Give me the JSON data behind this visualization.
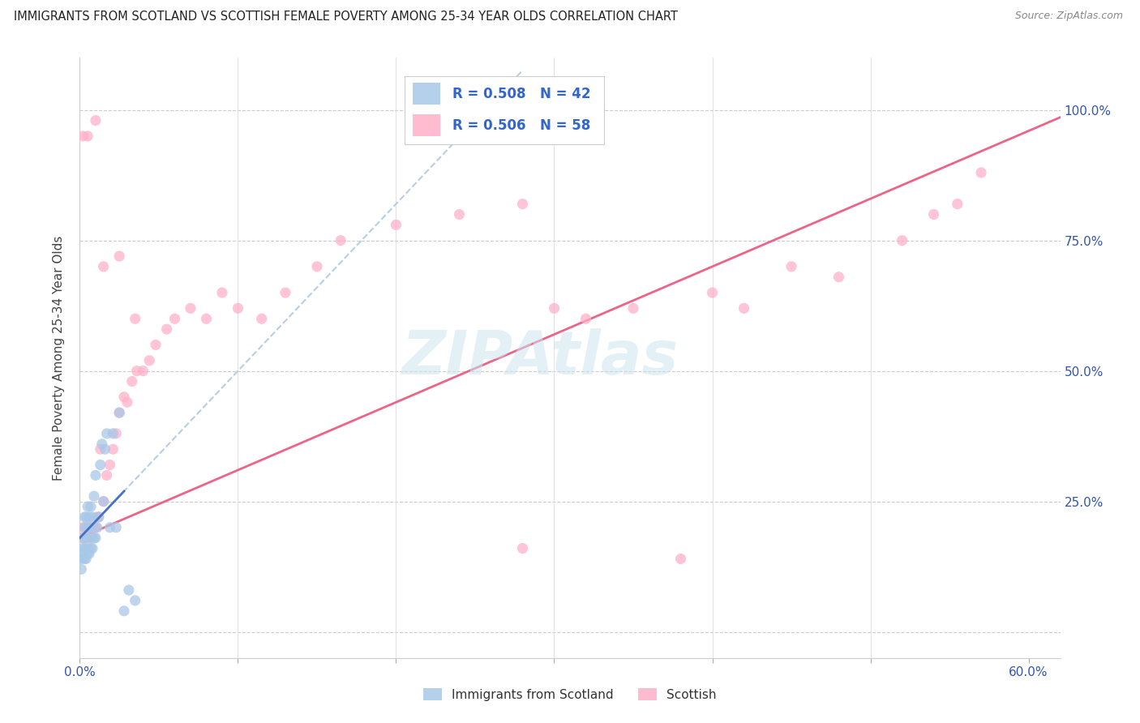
{
  "title": "IMMIGRANTS FROM SCOTLAND VS SCOTTISH FEMALE POVERTY AMONG 25-34 YEAR OLDS CORRELATION CHART",
  "source": "Source: ZipAtlas.com",
  "ylabel": "Female Poverty Among 25-34 Year Olds",
  "xlim": [
    0.0,
    0.62
  ],
  "ylim": [
    -0.05,
    1.1
  ],
  "xtick_positions": [
    0.0,
    0.1,
    0.2,
    0.3,
    0.4,
    0.5,
    0.6
  ],
  "xtick_labels": [
    "0.0%",
    "",
    "",
    "",
    "",
    "",
    "60.0%"
  ],
  "ytick_positions": [
    0.0,
    0.25,
    0.5,
    0.75,
    1.0
  ],
  "ytick_labels_right": [
    "",
    "25.0%",
    "50.0%",
    "75.0%",
    "100.0%"
  ],
  "legend_r1": "R = 0.508",
  "legend_n1": "N = 42",
  "legend_r2": "R = 0.506",
  "legend_n2": "N = 58",
  "color_blue": "#a8c8e8",
  "color_pink": "#ffb0c8",
  "color_trend_blue_dashed": "#b0c8e0",
  "color_trend_blue_solid": "#4472c4",
  "color_trend_pink": "#e8547a",
  "watermark": "ZIPAtlas",
  "blue_scatter_x": [
    0.001,
    0.001,
    0.002,
    0.002,
    0.002,
    0.003,
    0.003,
    0.003,
    0.003,
    0.004,
    0.004,
    0.004,
    0.005,
    0.005,
    0.005,
    0.005,
    0.006,
    0.006,
    0.006,
    0.007,
    0.007,
    0.007,
    0.008,
    0.008,
    0.009,
    0.009,
    0.01,
    0.01,
    0.011,
    0.012,
    0.013,
    0.014,
    0.015,
    0.016,
    0.017,
    0.019,
    0.021,
    0.023,
    0.025,
    0.028,
    0.031,
    0.035
  ],
  "blue_scatter_y": [
    0.14,
    0.12,
    0.15,
    0.16,
    0.18,
    0.14,
    0.16,
    0.2,
    0.22,
    0.14,
    0.18,
    0.22,
    0.15,
    0.16,
    0.2,
    0.24,
    0.15,
    0.18,
    0.22,
    0.16,
    0.2,
    0.24,
    0.16,
    0.22,
    0.18,
    0.26,
    0.18,
    0.3,
    0.2,
    0.22,
    0.32,
    0.36,
    0.25,
    0.35,
    0.38,
    0.2,
    0.38,
    0.2,
    0.42,
    0.04,
    0.08,
    0.06
  ],
  "pink_scatter_x": [
    0.001,
    0.002,
    0.003,
    0.004,
    0.005,
    0.006,
    0.007,
    0.008,
    0.009,
    0.01,
    0.011,
    0.012,
    0.013,
    0.015,
    0.017,
    0.019,
    0.021,
    0.023,
    0.025,
    0.028,
    0.03,
    0.033,
    0.036,
    0.04,
    0.044,
    0.048,
    0.055,
    0.06,
    0.07,
    0.08,
    0.09,
    0.1,
    0.115,
    0.13,
    0.15,
    0.165,
    0.2,
    0.24,
    0.28,
    0.3,
    0.32,
    0.35,
    0.4,
    0.42,
    0.45,
    0.48,
    0.52,
    0.54,
    0.555,
    0.57,
    0.002,
    0.005,
    0.01,
    0.015,
    0.025,
    0.035,
    0.28,
    0.38
  ],
  "pink_scatter_y": [
    0.18,
    0.2,
    0.18,
    0.2,
    0.18,
    0.2,
    0.2,
    0.18,
    0.2,
    0.2,
    0.22,
    0.22,
    0.35,
    0.25,
    0.3,
    0.32,
    0.35,
    0.38,
    0.42,
    0.45,
    0.44,
    0.48,
    0.5,
    0.5,
    0.52,
    0.55,
    0.58,
    0.6,
    0.62,
    0.6,
    0.65,
    0.62,
    0.6,
    0.65,
    0.7,
    0.75,
    0.78,
    0.8,
    0.82,
    0.62,
    0.6,
    0.62,
    0.65,
    0.62,
    0.7,
    0.68,
    0.75,
    0.8,
    0.82,
    0.88,
    0.95,
    0.95,
    0.98,
    0.7,
    0.72,
    0.6,
    0.16,
    0.14
  ],
  "blue_trend_slope": 3.2,
  "blue_trend_intercept": 0.18,
  "pink_trend_slope": 1.3,
  "pink_trend_intercept": 0.18
}
